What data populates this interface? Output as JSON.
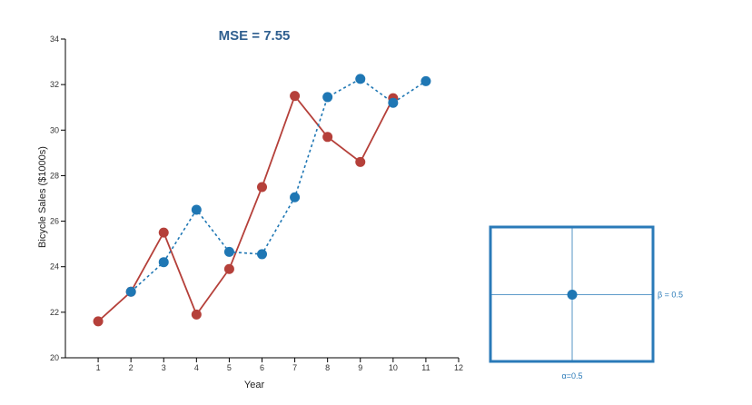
{
  "chart_data": {
    "type": "line",
    "title": "MSE = 7.55",
    "xlabel": "Year",
    "ylabel": "Bicycle Sales ($1000s)",
    "xlim": [
      0,
      12
    ],
    "ylim": [
      20,
      34
    ],
    "x_ticks": [
      1,
      2,
      3,
      4,
      5,
      6,
      7,
      8,
      9,
      10,
      11,
      12
    ],
    "y_ticks": [
      20,
      22,
      24,
      26,
      28,
      30,
      32,
      34
    ],
    "grid": false,
    "series": [
      {
        "style": "solid",
        "color": "#b5403a",
        "points": [
          [
            1,
            21.6
          ],
          [
            2,
            22.9
          ],
          [
            3,
            25.5
          ],
          [
            4,
            21.9
          ],
          [
            5,
            23.9
          ],
          [
            6,
            27.5
          ],
          [
            7,
            31.5
          ],
          [
            8,
            29.7
          ],
          [
            9,
            28.6
          ],
          [
            10,
            31.4
          ]
        ]
      },
      {
        "style": "dashed",
        "color": "#1f77b4",
        "points": [
          [
            2,
            22.9
          ],
          [
            3,
            24.2
          ],
          [
            4,
            26.5
          ],
          [
            5,
            24.65
          ],
          [
            6,
            24.55
          ],
          [
            7,
            27.05
          ],
          [
            8,
            31.45
          ],
          [
            9,
            32.25
          ],
          [
            10,
            31.2
          ],
          [
            11,
            32.15
          ]
        ]
      }
    ]
  },
  "parameter_selector": {
    "alpha_label": "α=0.5",
    "beta_label": "β = 0.5",
    "alpha": 0.5,
    "beta": 0.5,
    "color": "#2a7ab8"
  }
}
